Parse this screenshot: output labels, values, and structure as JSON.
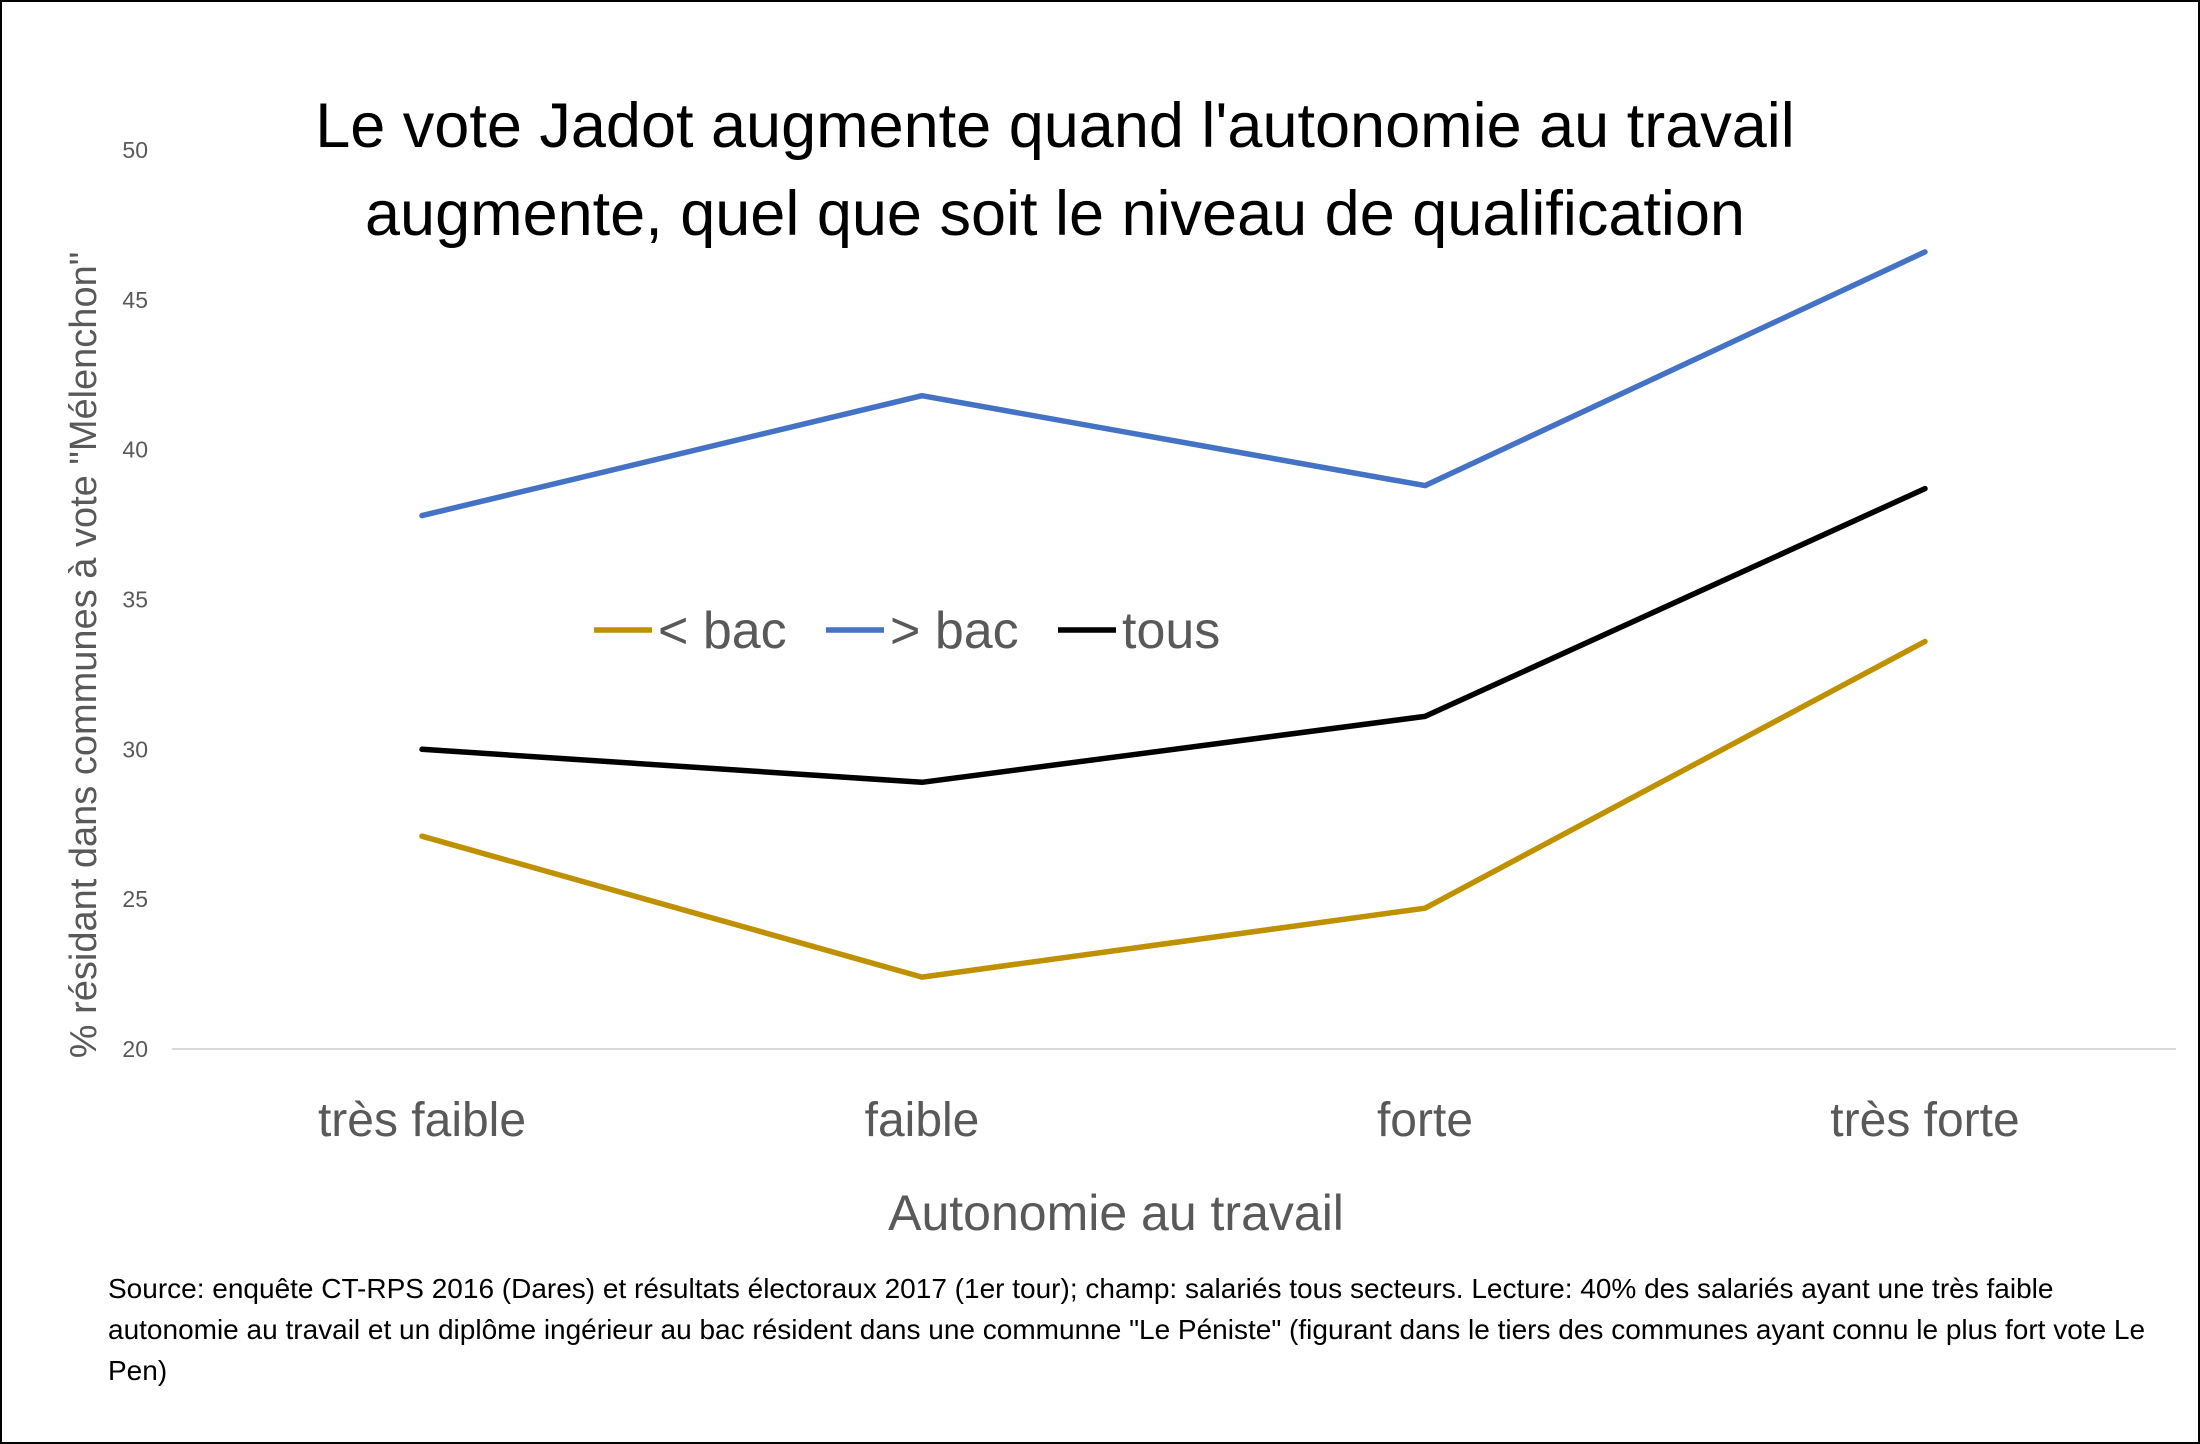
{
  "chart_data": {
    "type": "line",
    "title_lines": [
      "Le vote Jadot augmente quand l'autonomie au travail",
      "augmente, quel que soit le niveau de qualification"
    ],
    "xlabel": "Autonomie au travail",
    "ylabel": "% résidant dans communes à vote \"Mélenchon\"",
    "categories": [
      "très faible",
      "faible",
      "forte",
      "très forte"
    ],
    "ylim": [
      20,
      50
    ],
    "yticks": [
      "20",
      "25",
      "30",
      "35",
      "40",
      "45",
      "50"
    ],
    "grid": false,
    "legend_position": "center",
    "series": [
      {
        "name": "< bac",
        "color": "#BF9000",
        "values": [
          27.1,
          22.4,
          24.7,
          33.6
        ]
      },
      {
        "name": "> bac",
        "color": "#4472C4",
        "values": [
          37.8,
          41.8,
          38.8,
          46.6
        ]
      },
      {
        "name": "tous",
        "color": "#000000",
        "values": [
          30.0,
          28.9,
          31.1,
          38.7
        ]
      }
    ]
  },
  "source_note": "Source: enquête CT-RPS 2016 (Dares) et résultats électoraux 2017 (1er tour); champ: salariés tous secteurs. Lecture: 40% des salariés ayant une très faible autonomie au travail et un diplôme ingérieur au bac résident dans une communne \"Le Péniste\" (figurant dans le tiers des communes ayant connu le plus fort vote Le Pen)"
}
